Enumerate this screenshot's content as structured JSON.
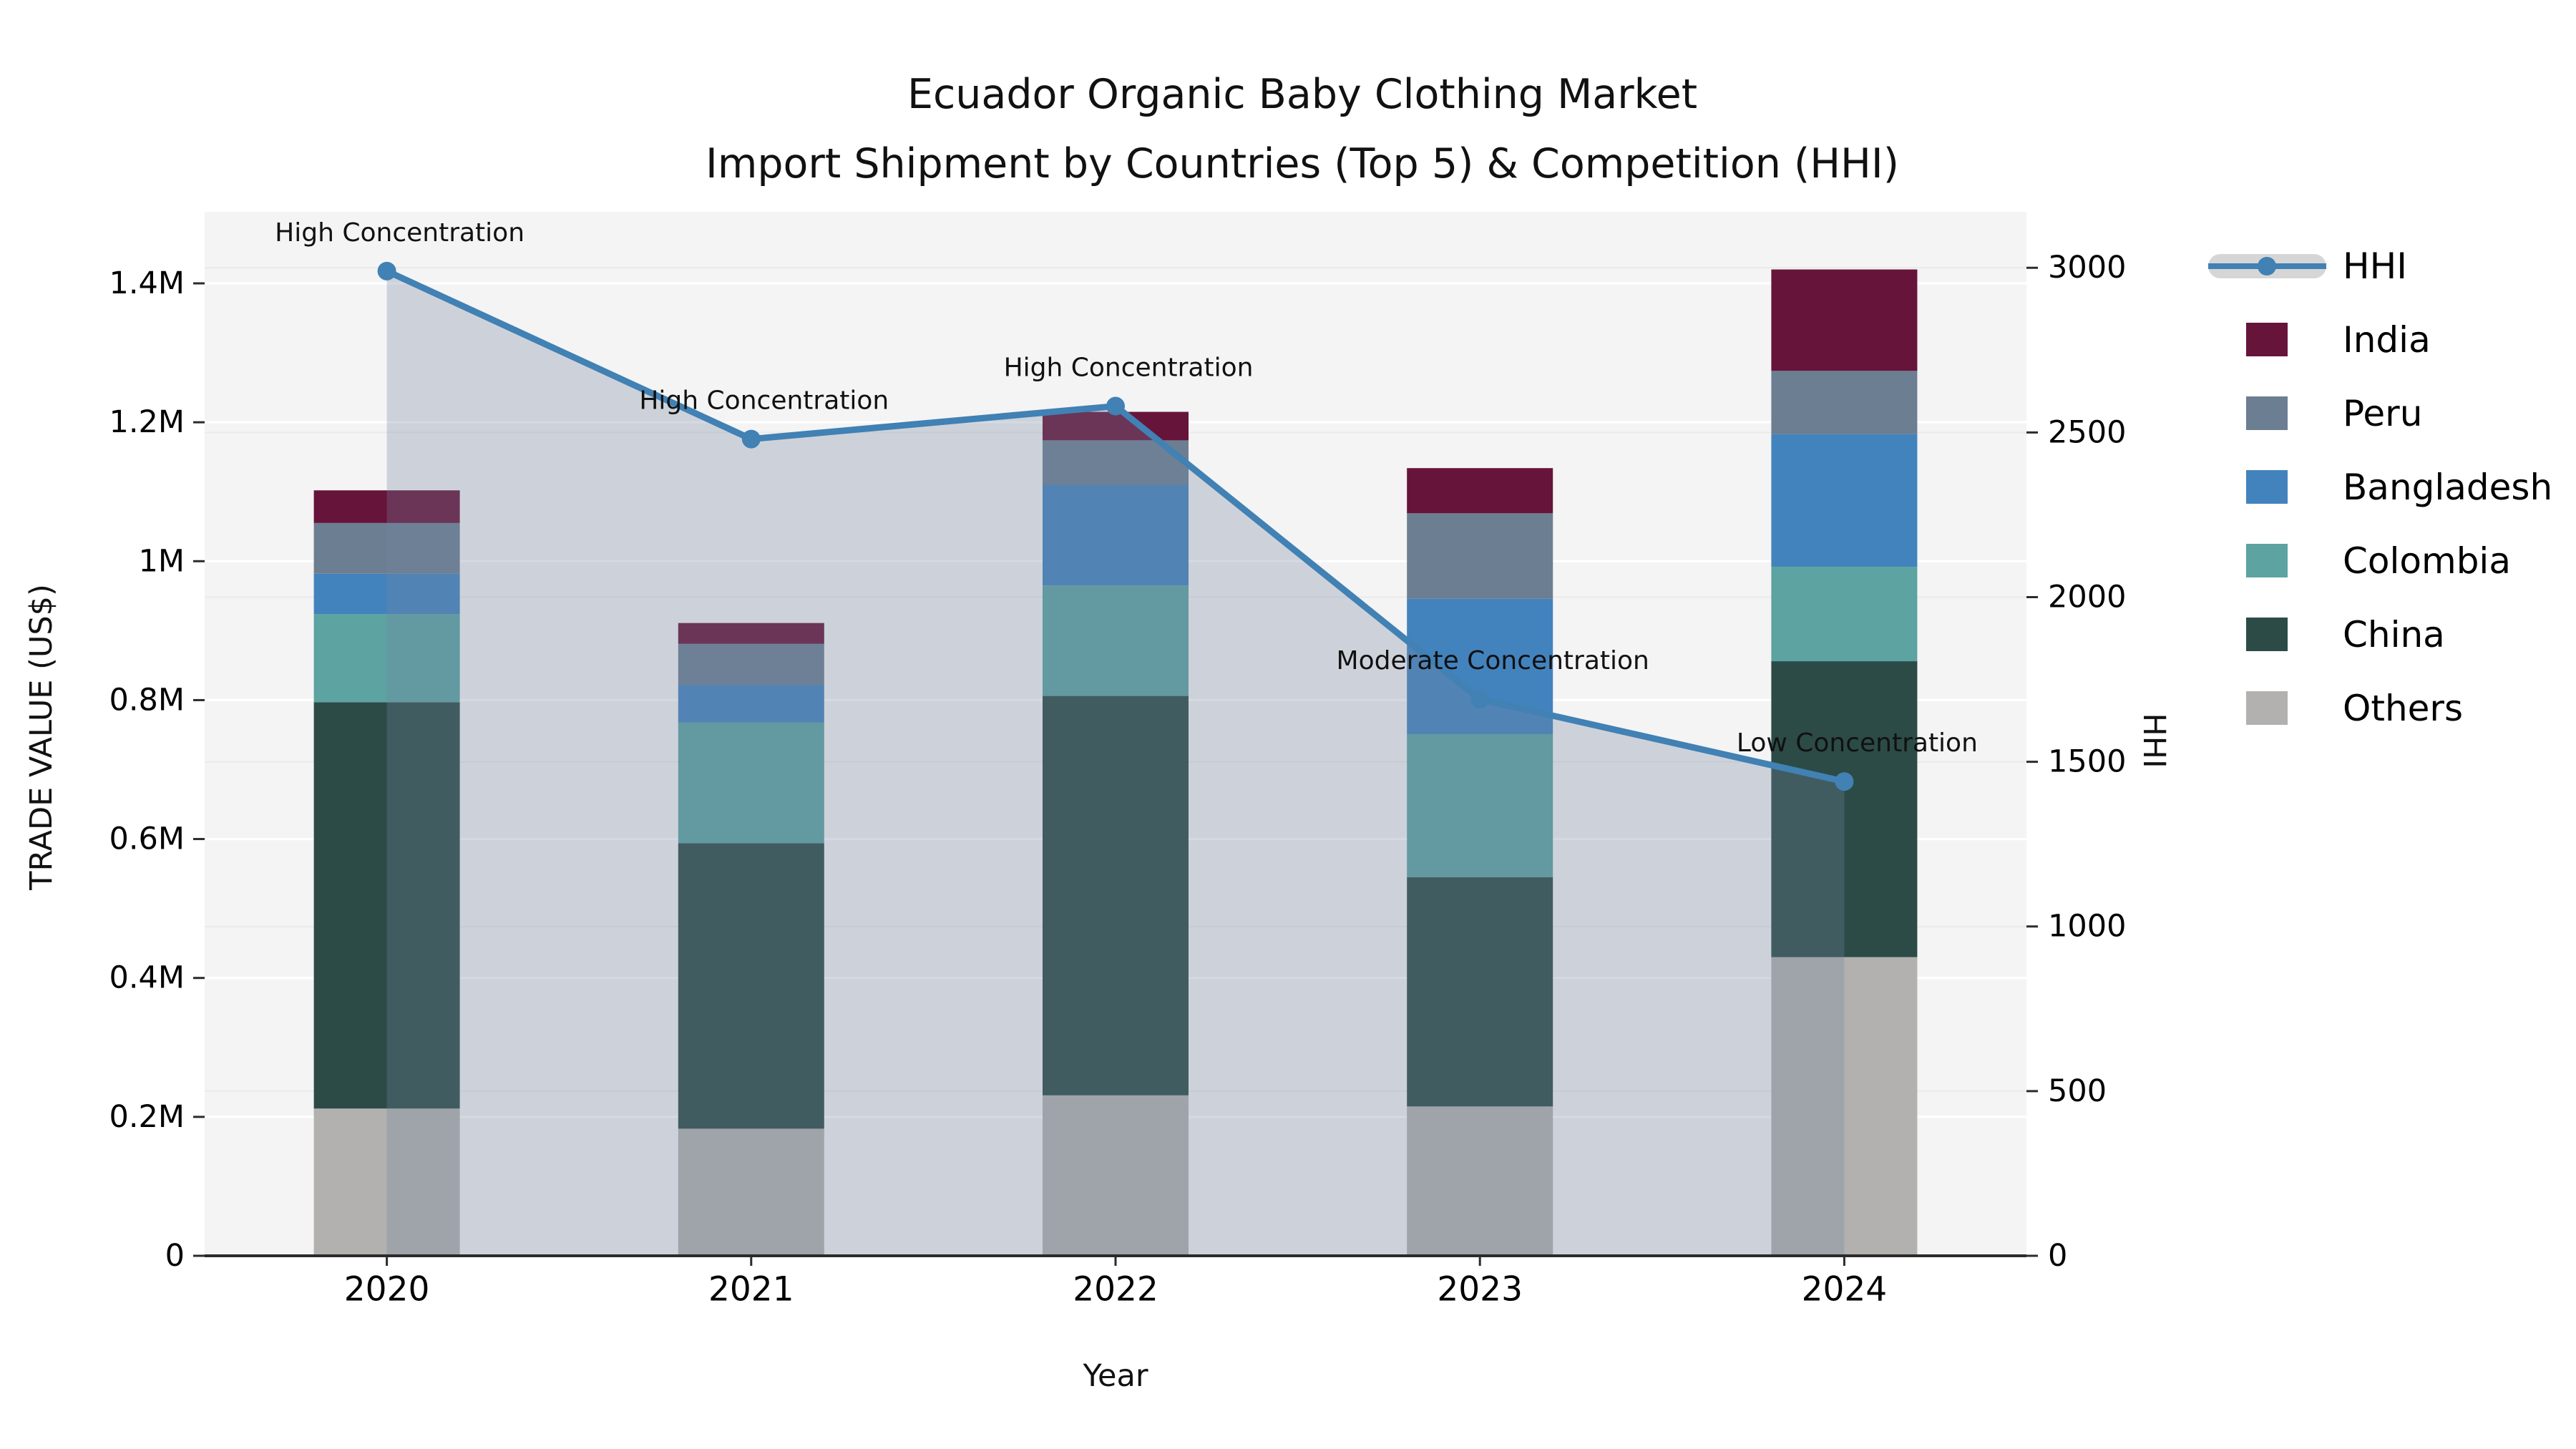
{
  "title": {
    "line1": "Ecuador Organic Baby Clothing Market",
    "line2": "Import Shipment by Countries (Top 5) & Competition (HHI)"
  },
  "axes": {
    "left": {
      "label": "TRADE VALUE (US$)"
    },
    "right": {
      "label": "HHI"
    },
    "x": {
      "label": "Year"
    }
  },
  "legend": {
    "items": [
      {
        "label": "HHI",
        "type": "line",
        "color": "#4181b4"
      },
      {
        "label": "India",
        "type": "box",
        "color": "#67143a"
      },
      {
        "label": "Peru",
        "type": "box",
        "color": "#6c7e91"
      },
      {
        "label": "Bangladesh",
        "type": "box",
        "color": "#4383bd"
      },
      {
        "label": "Colombia",
        "type": "box",
        "color": "#5ca3a2"
      },
      {
        "label": "China",
        "type": "box",
        "color": "#2c4b47"
      },
      {
        "label": "Others",
        "type": "box",
        "color": "#b2b1af"
      }
    ]
  },
  "chart_data": [
    {
      "type": "bar",
      "stacked": true,
      "title": "Ecuador Organic Baby Clothing Market — Import Shipment by Countries (Top 5)",
      "xlabel": "Year",
      "ylabel": "TRADE VALUE (US$)",
      "categories": [
        "2020",
        "2021",
        "2022",
        "2023",
        "2024"
      ],
      "ylim": [
        0,
        1503000
      ],
      "ytick_values": [
        0,
        200000,
        400000,
        600000,
        800000,
        1000000,
        1200000,
        1400000
      ],
      "ytick_labels": [
        "0",
        "0.2M",
        "0.4M",
        "0.6M",
        "0.8M",
        "1M",
        "1.2M",
        "1.4M"
      ],
      "grid": true,
      "series": [
        {
          "name": "Others",
          "color": "#b2b1af",
          "values": [
            212000,
            183000,
            231000,
            215000,
            430000
          ]
        },
        {
          "name": "China",
          "color": "#2c4b47",
          "values": [
            585000,
            411000,
            575000,
            330000,
            426000
          ]
        },
        {
          "name": "Colombia",
          "color": "#5ca3a2",
          "values": [
            127000,
            174000,
            159000,
            206000,
            136000
          ]
        },
        {
          "name": "Bangladesh",
          "color": "#4383bd",
          "values": [
            58000,
            54000,
            145000,
            195000,
            191000
          ]
        },
        {
          "name": "Peru",
          "color": "#6c7e91",
          "values": [
            73000,
            59000,
            64000,
            123000,
            91000
          ]
        },
        {
          "name": "India",
          "color": "#67143a",
          "values": [
            47000,
            30000,
            41000,
            65000,
            146000
          ]
        }
      ],
      "totals": [
        1102000,
        911000,
        1215000,
        1134000,
        1420000
      ]
    },
    {
      "type": "line",
      "name": "HHI",
      "ylabel": "HHI",
      "x": [
        "2020",
        "2021",
        "2022",
        "2023",
        "2024"
      ],
      "values": [
        2990,
        2480,
        2580,
        1690,
        1440
      ],
      "ylim": [
        0,
        3170
      ],
      "ytick_values": [
        0,
        500,
        1000,
        1500,
        2000,
        2500,
        3000
      ],
      "ytick_labels": [
        "0",
        "500",
        "1000",
        "1500",
        "2000",
        "2500",
        "3000"
      ],
      "color": "#4181b4",
      "area": true,
      "area_color": "rgba(115,133,160,0.30)",
      "legend_position": "right",
      "annotations": [
        "High Concentration",
        "High Concentration",
        "High Concentration",
        "Moderate Concentration",
        "Low Concentration"
      ]
    }
  ]
}
